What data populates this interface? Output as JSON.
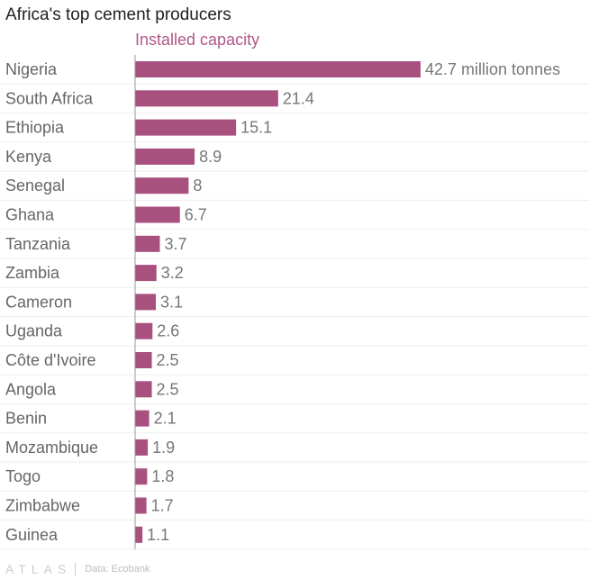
{
  "chart_data": {
    "type": "bar",
    "orientation": "horizontal",
    "title": "Africa's top cement producers",
    "subtitle": "Installed capacity",
    "categories": [
      "Nigeria",
      "South Africa",
      "Ethiopia",
      "Kenya",
      "Senegal",
      "Ghana",
      "Tanzania",
      "Zambia",
      "Cameron",
      "Uganda",
      "Côte d'Ivoire",
      "Angola",
      "Benin",
      "Mozambique",
      "Togo",
      "Zimbabwe",
      "Guinea"
    ],
    "values": [
      42.7,
      21.4,
      15.1,
      8.9,
      8,
      6.7,
      3.7,
      3.2,
      3.1,
      2.6,
      2.5,
      2.5,
      2.1,
      1.9,
      1.8,
      1.7,
      1.1
    ],
    "data_labels": [
      "42.7 million tonnes",
      "21.4",
      "15.1",
      "8.9",
      "8",
      "6.7",
      "3.7",
      "3.2",
      "3.1",
      "2.6",
      "2.5",
      "2.5",
      "2.1",
      "1.9",
      "1.8",
      "1.7",
      "1.1"
    ],
    "xlim": [
      0,
      42.7
    ],
    "grid": true,
    "colors": {
      "bar": "#a8517f",
      "subtitle": "#b0568a"
    }
  },
  "footer": {
    "logo": "ATLAS",
    "source": "Data: Ecobank"
  }
}
